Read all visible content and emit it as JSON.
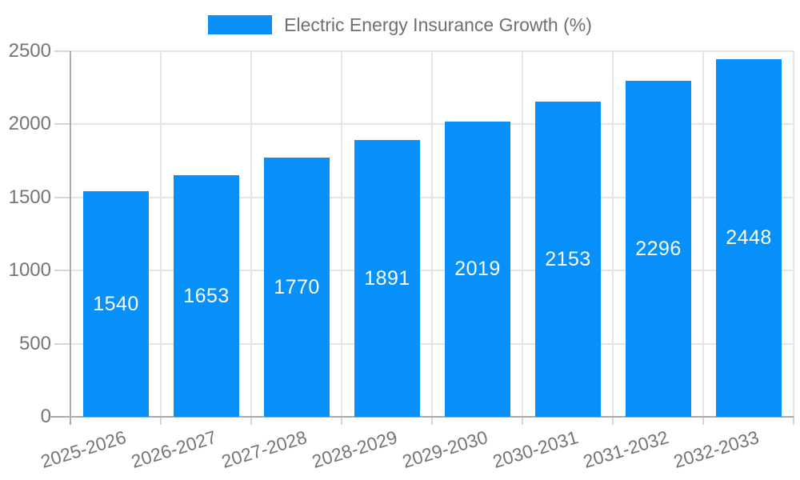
{
  "legend": {
    "swatch_color": "#0890fa",
    "label": "Electric Energy Insurance Growth (%)"
  },
  "chart_data": {
    "type": "bar",
    "title": "Electric Energy Insurance Growth (%)",
    "categories": [
      "2025-2026",
      "2026-2027",
      "2027-2028",
      "2028-2029",
      "2029-2030",
      "2030-2031",
      "2031-2032",
      "2032-2033"
    ],
    "values": [
      1540,
      1653,
      1770,
      1891,
      2019,
      2153,
      2296,
      2448
    ],
    "xlabel": "",
    "ylabel": "",
    "ylim": [
      0,
      2500
    ],
    "yticks": [
      0,
      500,
      1000,
      1500,
      2000,
      2500
    ],
    "grid": true,
    "legend_position": "top-center",
    "bar_color": "#0890fa",
    "value_label_color": "#ffffff",
    "axis_text_color": "#757575",
    "grid_color": "#e5e5e5",
    "tick_color": "#d6d6d6",
    "axis_line_color": "#ababab"
  }
}
